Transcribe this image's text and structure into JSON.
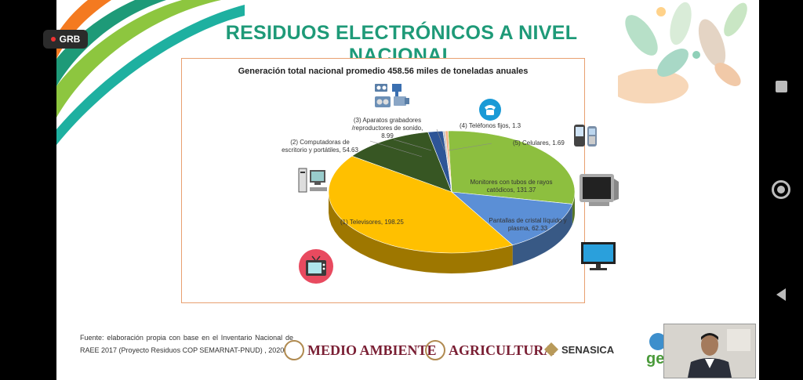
{
  "recording": {
    "label": "GRB"
  },
  "slide": {
    "title": "RESIDUOS ELECTRÓNICOS A NIVEL NACIONAL",
    "source": "Fuente: elaboración propia con base en el Inventario Nacional de RAEE 2017 (Proyecto Residuos COP SEMARNAT-PNUD) , 2020.",
    "logos": {
      "medio_ambiente": "MEDIO AMBIENTE",
      "agricultura": "AGRICULTURA",
      "senasica": "SENASICA",
      "ge": "ge"
    }
  },
  "chart_data": {
    "type": "pie",
    "title": "Generación total nacional promedio 458.56 miles de toneladas anuales",
    "slices": [
      {
        "label": "Monitores con tubos de rayos catódicos, 131.37",
        "value": 131.37,
        "color": "#8dbf3f"
      },
      {
        "label": "Pantallas de cristal líquido y plasma, 62.33",
        "value": 62.33,
        "color": "#5b8fd6"
      },
      {
        "label": "(1) Televisores, 198.25",
        "value": 198.25,
        "color": "#ffc000"
      },
      {
        "label": "(2) Computadoras de escritorio y portátiles, 54.63",
        "value": 54.63,
        "color": "#375623"
      },
      {
        "label": "(3) Aparatos grabadores /reproductores de sonido, 8.99",
        "value": 8.99,
        "color": "#2e5597"
      },
      {
        "label": "(4) Teléfonos fijos, 1.3",
        "value": 1.3,
        "color": "#bfbfbf"
      },
      {
        "label": "(5) Celulares, 1.69",
        "value": 1.69,
        "color": "#f4b183"
      }
    ],
    "labels": {
      "monitores_line1": "Monitores con tubos de rayos",
      "monitores_line2": "catódicos, 131.37",
      "pantallas_line1": "Pantallas de cristal líquido y",
      "pantallas_line2": "plasma, 62.33",
      "televisores": "(1) Televisores, 198.25",
      "computadoras_line1": "(2) Computadoras de",
      "computadoras_line2": "escritorio y portátiles, 54.63",
      "aparatos_line1": "(3) Aparatos grabadores",
      "aparatos_line2": "/reproductores de sonido,",
      "aparatos_line3": "8.99",
      "telefonos": "(4) Teléfonos fijos, 1.3",
      "celulares": "(5) Celulares, 1.69"
    }
  }
}
